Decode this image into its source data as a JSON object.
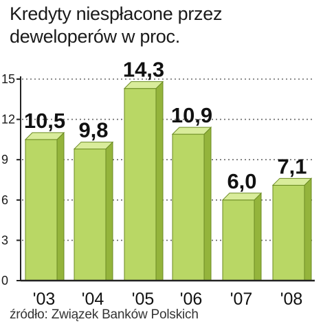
{
  "title": "Kredyty niespłacone przez deweloperów w proc.",
  "source": "źródło: Związek Banków Polskich",
  "colors": {
    "bar_front": "#b9d765",
    "bar_side": "#94b43c",
    "bar_top": "#d9ec9b",
    "bar_edge": "#6a8a22",
    "axis": "#222222",
    "grid": "#666666"
  },
  "chart_data": {
    "type": "bar",
    "title": "Kredyty niespłacone przez deweloperów w proc.",
    "categories": [
      "'03",
      "'04",
      "'05",
      "'06",
      "'07",
      "'08"
    ],
    "values": [
      10.5,
      9.8,
      14.3,
      10.9,
      6.0,
      7.1
    ],
    "value_labels": [
      "10,5",
      "9,8",
      "14,3",
      "10,9",
      "6,0",
      "7,1"
    ],
    "y_ticks": [
      0,
      3,
      6,
      9,
      12,
      15
    ],
    "ylim": [
      0,
      15
    ],
    "xlabel": "",
    "ylabel": "",
    "grid": true,
    "legend": "none",
    "style": "3d-bar"
  }
}
